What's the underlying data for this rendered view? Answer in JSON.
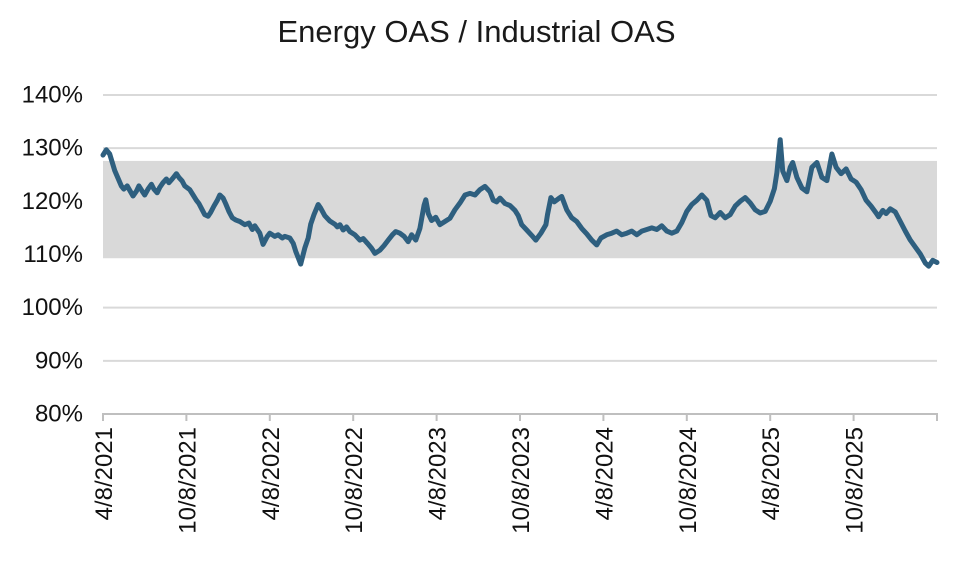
{
  "chart_data": {
    "type": "line",
    "title": "Energy OAS / Industrial OAS",
    "legend": false,
    "grid": true,
    "y_axis": {
      "format": "percent",
      "min": 80,
      "max": 140,
      "step": 10,
      "tick_labels": [
        "140%",
        "130%",
        "120%",
        "110%",
        "100%",
        "90%",
        "80%"
      ]
    },
    "x_axis": {
      "tick_labels": [
        "4/8/2021",
        "10/8/2021",
        "4/8/2022",
        "10/8/2022",
        "4/8/2023",
        "10/8/2023",
        "4/8/2024",
        "10/8/2024",
        "4/8/2025",
        "10/8/2025"
      ],
      "tick_count": 11,
      "label_rotation_deg": 90,
      "note": "ticks every 6 months; axis extends one unlabeled tick past 10/8/2025; x of points given as 0-1 fraction of full axis"
    },
    "band": {
      "kind": "horizontal-shaded-range",
      "from_pct": 109.3,
      "to_pct": 127.6,
      "color": "#D9D9D9"
    },
    "series": [
      {
        "name": "Energy OAS / Industrial OAS",
        "color": "#2E5F7F",
        "points": [
          [
            0.0,
            128.7
          ],
          [
            0.004,
            129.7
          ],
          [
            0.008,
            128.9
          ],
          [
            0.014,
            125.8
          ],
          [
            0.022,
            122.9
          ],
          [
            0.025,
            122.3
          ],
          [
            0.029,
            122.9
          ],
          [
            0.036,
            121.0
          ],
          [
            0.04,
            121.9
          ],
          [
            0.043,
            122.9
          ],
          [
            0.047,
            121.9
          ],
          [
            0.05,
            121.2
          ],
          [
            0.054,
            122.3
          ],
          [
            0.058,
            123.2
          ],
          [
            0.061,
            122.3
          ],
          [
            0.065,
            121.6
          ],
          [
            0.068,
            122.6
          ],
          [
            0.072,
            123.5
          ],
          [
            0.076,
            124.2
          ],
          [
            0.079,
            123.5
          ],
          [
            0.083,
            124.2
          ],
          [
            0.088,
            125.2
          ],
          [
            0.091,
            124.5
          ],
          [
            0.095,
            123.8
          ],
          [
            0.098,
            122.9
          ],
          [
            0.104,
            122.2
          ],
          [
            0.108,
            121.2
          ],
          [
            0.112,
            120.2
          ],
          [
            0.115,
            119.6
          ],
          [
            0.119,
            118.4
          ],
          [
            0.122,
            117.5
          ],
          [
            0.126,
            117.2
          ],
          [
            0.129,
            117.9
          ],
          [
            0.133,
            119.1
          ],
          [
            0.137,
            120.2
          ],
          [
            0.14,
            121.2
          ],
          [
            0.144,
            120.6
          ],
          [
            0.147,
            119.6
          ],
          [
            0.151,
            118.1
          ],
          [
            0.155,
            116.9
          ],
          [
            0.159,
            116.5
          ],
          [
            0.164,
            116.2
          ],
          [
            0.17,
            115.6
          ],
          [
            0.175,
            115.9
          ],
          [
            0.179,
            114.7
          ],
          [
            0.182,
            115.4
          ],
          [
            0.188,
            114.0
          ],
          [
            0.192,
            111.9
          ],
          [
            0.197,
            113.4
          ],
          [
            0.2,
            114.0
          ],
          [
            0.206,
            113.4
          ],
          [
            0.21,
            113.7
          ],
          [
            0.215,
            113.1
          ],
          [
            0.218,
            113.4
          ],
          [
            0.224,
            113.1
          ],
          [
            0.228,
            112.1
          ],
          [
            0.231,
            110.6
          ],
          [
            0.237,
            108.2
          ],
          [
            0.242,
            111.2
          ],
          [
            0.246,
            113.1
          ],
          [
            0.249,
            115.7
          ],
          [
            0.253,
            117.5
          ],
          [
            0.258,
            119.4
          ],
          [
            0.261,
            118.7
          ],
          [
            0.266,
            117.3
          ],
          [
            0.272,
            116.3
          ],
          [
            0.278,
            115.7
          ],
          [
            0.281,
            115.2
          ],
          [
            0.284,
            115.6
          ],
          [
            0.288,
            114.6
          ],
          [
            0.292,
            115.2
          ],
          [
            0.296,
            114.3
          ],
          [
            0.302,
            113.7
          ],
          [
            0.308,
            112.7
          ],
          [
            0.312,
            113.0
          ],
          [
            0.317,
            112.1
          ],
          [
            0.322,
            111.2
          ],
          [
            0.326,
            110.2
          ],
          [
            0.332,
            110.8
          ],
          [
            0.337,
            111.7
          ],
          [
            0.342,
            112.7
          ],
          [
            0.347,
            113.7
          ],
          [
            0.351,
            114.3
          ],
          [
            0.356,
            114.0
          ],
          [
            0.361,
            113.4
          ],
          [
            0.366,
            112.4
          ],
          [
            0.37,
            113.7
          ],
          [
            0.375,
            112.7
          ],
          [
            0.38,
            114.9
          ],
          [
            0.385,
            119.3
          ],
          [
            0.387,
            120.3
          ],
          [
            0.39,
            117.7
          ],
          [
            0.394,
            116.4
          ],
          [
            0.399,
            117.0
          ],
          [
            0.404,
            115.6
          ],
          [
            0.41,
            116.2
          ],
          [
            0.416,
            116.8
          ],
          [
            0.422,
            118.4
          ],
          [
            0.428,
            119.7
          ],
          [
            0.434,
            121.2
          ],
          [
            0.44,
            121.5
          ],
          [
            0.446,
            121.2
          ],
          [
            0.452,
            122.2
          ],
          [
            0.458,
            122.8
          ],
          [
            0.464,
            121.8
          ],
          [
            0.468,
            120.2
          ],
          [
            0.472,
            119.9
          ],
          [
            0.476,
            120.6
          ],
          [
            0.482,
            119.6
          ],
          [
            0.488,
            119.2
          ],
          [
            0.494,
            118.3
          ],
          [
            0.498,
            117.3
          ],
          [
            0.502,
            115.6
          ],
          [
            0.508,
            114.6
          ],
          [
            0.514,
            113.6
          ],
          [
            0.519,
            112.7
          ],
          [
            0.525,
            114.0
          ],
          [
            0.531,
            115.6
          ],
          [
            0.533,
            117.5
          ],
          [
            0.537,
            120.7
          ],
          [
            0.541,
            119.9
          ],
          [
            0.546,
            120.5
          ],
          [
            0.55,
            120.9
          ],
          [
            0.556,
            118.4
          ],
          [
            0.562,
            116.9
          ],
          [
            0.568,
            116.2
          ],
          [
            0.574,
            114.9
          ],
          [
            0.58,
            113.9
          ],
          [
            0.586,
            112.7
          ],
          [
            0.592,
            111.8
          ],
          [
            0.597,
            113.1
          ],
          [
            0.604,
            113.7
          ],
          [
            0.61,
            114.0
          ],
          [
            0.616,
            114.4
          ],
          [
            0.622,
            113.7
          ],
          [
            0.628,
            114.0
          ],
          [
            0.634,
            114.4
          ],
          [
            0.64,
            113.7
          ],
          [
            0.646,
            114.4
          ],
          [
            0.652,
            114.7
          ],
          [
            0.658,
            115.0
          ],
          [
            0.664,
            114.7
          ],
          [
            0.67,
            115.4
          ],
          [
            0.676,
            114.4
          ],
          [
            0.682,
            114.0
          ],
          [
            0.688,
            114.4
          ],
          [
            0.694,
            116.0
          ],
          [
            0.7,
            118.1
          ],
          [
            0.706,
            119.4
          ],
          [
            0.712,
            120.2
          ],
          [
            0.718,
            121.2
          ],
          [
            0.724,
            120.2
          ],
          [
            0.729,
            117.3
          ],
          [
            0.734,
            116.9
          ],
          [
            0.74,
            117.9
          ],
          [
            0.746,
            116.9
          ],
          [
            0.752,
            117.5
          ],
          [
            0.758,
            119.1
          ],
          [
            0.764,
            120.0
          ],
          [
            0.77,
            120.7
          ],
          [
            0.776,
            119.7
          ],
          [
            0.782,
            118.4
          ],
          [
            0.788,
            117.8
          ],
          [
            0.794,
            118.1
          ],
          [
            0.8,
            120.0
          ],
          [
            0.805,
            122.4
          ],
          [
            0.808,
            125.4
          ],
          [
            0.812,
            131.6
          ],
          [
            0.815,
            125.7
          ],
          [
            0.82,
            123.9
          ],
          [
            0.824,
            126.4
          ],
          [
            0.827,
            127.3
          ],
          [
            0.832,
            124.5
          ],
          [
            0.838,
            122.5
          ],
          [
            0.844,
            121.8
          ],
          [
            0.85,
            126.4
          ],
          [
            0.856,
            127.3
          ],
          [
            0.862,
            124.5
          ],
          [
            0.868,
            123.9
          ],
          [
            0.874,
            128.9
          ],
          [
            0.879,
            126.4
          ],
          [
            0.885,
            125.2
          ],
          [
            0.891,
            126.1
          ],
          [
            0.897,
            124.2
          ],
          [
            0.903,
            123.6
          ],
          [
            0.909,
            122.2
          ],
          [
            0.915,
            120.2
          ],
          [
            0.921,
            119.1
          ],
          [
            0.927,
            117.8
          ],
          [
            0.93,
            117.1
          ],
          [
            0.935,
            118.3
          ],
          [
            0.939,
            117.7
          ],
          [
            0.944,
            118.6
          ],
          [
            0.95,
            118.0
          ],
          [
            0.956,
            116.2
          ],
          [
            0.962,
            114.4
          ],
          [
            0.968,
            112.7
          ],
          [
            0.974,
            111.4
          ],
          [
            0.98,
            110.1
          ],
          [
            0.986,
            108.4
          ],
          [
            0.99,
            107.8
          ],
          [
            0.995,
            108.9
          ],
          [
            1.0,
            108.5
          ]
        ]
      }
    ],
    "colors": {
      "line": "#2E5F7F",
      "band": "#D9D9D9",
      "gridline": "#D9D9D9",
      "axis": "#BFBFBF",
      "text": "#1a1a1a",
      "background": "#FFFFFF"
    }
  }
}
